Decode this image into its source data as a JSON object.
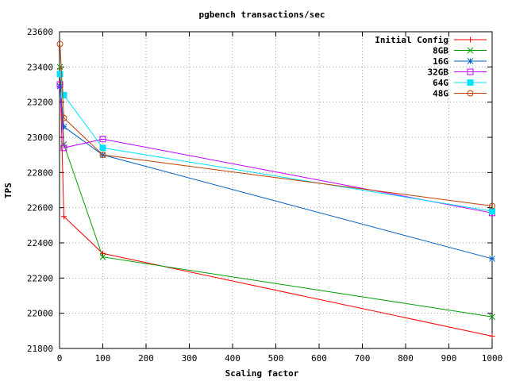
{
  "chart_data": {
    "type": "line",
    "title": "pgbench transactions/sec",
    "xlabel": "Scaling factor",
    "ylabel": "TPS",
    "xlim": [
      0,
      1000
    ],
    "ylim": [
      21800,
      23600
    ],
    "xticks": [
      0,
      100,
      200,
      300,
      400,
      500,
      600,
      700,
      800,
      900,
      1000
    ],
    "yticks": [
      21800,
      22000,
      22200,
      22400,
      22600,
      22800,
      23000,
      23200,
      23400,
      23600
    ],
    "grid": true,
    "legend_position": "top-right",
    "series": [
      {
        "name": "Initial Config",
        "color": "#ff0000",
        "marker": "plus",
        "points": [
          [
            1,
            23390
          ],
          [
            10,
            22550
          ],
          [
            100,
            22340
          ],
          [
            1000,
            21870
          ]
        ]
      },
      {
        "name": "8GB",
        "color": "#00a000",
        "marker": "cross",
        "points": [
          [
            1,
            23400
          ],
          [
            10,
            22960
          ],
          [
            100,
            22320
          ],
          [
            1000,
            21980
          ]
        ]
      },
      {
        "name": "16G",
        "color": "#0060c0",
        "marker": "star",
        "points": [
          [
            1,
            23290
          ],
          [
            10,
            23060
          ],
          [
            100,
            22900
          ],
          [
            1000,
            22310
          ]
        ]
      },
      {
        "name": "32GB",
        "color": "#c000ff",
        "marker": "square-open",
        "points": [
          [
            1,
            23300
          ],
          [
            10,
            22940
          ],
          [
            100,
            22990
          ],
          [
            1000,
            22570
          ]
        ]
      },
      {
        "name": "64G",
        "color": "#00e0ff",
        "marker": "square-filled",
        "points": [
          [
            1,
            23360
          ],
          [
            10,
            23240
          ],
          [
            100,
            22940
          ],
          [
            1000,
            22580
          ]
        ]
      },
      {
        "name": "48G",
        "color": "#c04000",
        "marker": "circle-open",
        "points": [
          [
            1,
            23530
          ],
          [
            10,
            23110
          ],
          [
            100,
            22900
          ],
          [
            1000,
            22610
          ]
        ]
      }
    ]
  }
}
